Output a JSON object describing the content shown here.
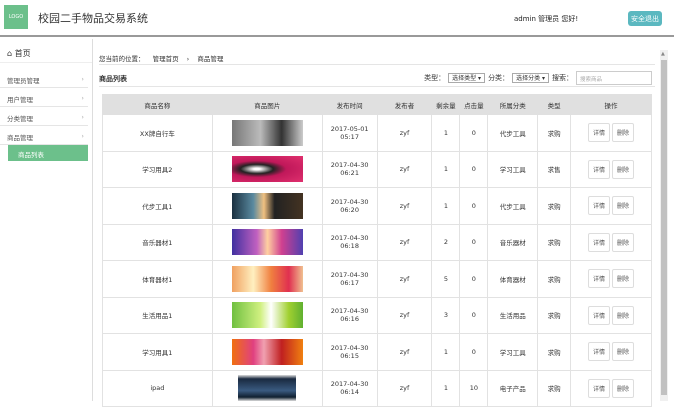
{
  "header": {
    "logo": "LOGO",
    "title": "校园二手物品交易系统",
    "user": "admin 管理员 您好!",
    "logout": "安全退出"
  },
  "sidebar": {
    "home": "首页",
    "items": [
      {
        "label": "管理员管理"
      },
      {
        "label": "用户管理"
      },
      {
        "label": "分类管理"
      },
      {
        "label": "商品管理"
      }
    ],
    "sub_active": "商品列表"
  },
  "breadcrumb": {
    "prefix": "您当前的位置：",
    "items": [
      "管理首页",
      "商品管理"
    ]
  },
  "toolbar": {
    "title": "商品列表",
    "type_label": "类型：",
    "type_select": "选择类型",
    "cat_label": "分类：",
    "cat_select": "选择分类",
    "search_label": "搜索：",
    "search_placeholder": "搜索商品"
  },
  "table": {
    "headers": [
      "商品名称",
      "商品图片",
      "发布时间",
      "发布者",
      "剩余量",
      "点击量",
      "所属分类",
      "类型",
      "操作"
    ],
    "detail": "详情",
    "delete": "删除",
    "rows": [
      {
        "name": "XX牌自行车",
        "date": "2017-05-01",
        "time": "05:17",
        "user": "zyf",
        "left": "1",
        "clicks": "0",
        "cat": "代步工具",
        "type": "求购",
        "img": "linear-gradient(90deg,#777,#bbb 40%,#333 70%,#ccc)"
      },
      {
        "name": "学习用具2",
        "date": "2017-04-30",
        "time": "06:21",
        "user": "zyf",
        "left": "1",
        "clicks": "0",
        "cat": "学习工具",
        "type": "求售",
        "img": "radial-gradient(ellipse at 35% 50%,#fff 5%,#222 25%,#c0185a 45%,#e0306e)"
      },
      {
        "name": "代步工具1",
        "date": "2017-04-30",
        "time": "06:20",
        "user": "zyf",
        "left": "1",
        "clicks": "0",
        "cat": "代步工具",
        "type": "求购",
        "img": "linear-gradient(90deg,#1a3040,#5a8aa0 30%,#f0c080 45%,#222 60%,#443322)"
      },
      {
        "name": "音乐器材1",
        "date": "2017-04-30",
        "time": "06:18",
        "user": "zyf",
        "left": "2",
        "clicks": "0",
        "cat": "音乐器材",
        "type": "求购",
        "img": "linear-gradient(90deg,#4030a0,#c060c0 35%,#ffd0a0 50%,#d04090 70%,#5040b0)"
      },
      {
        "name": "体育器材1",
        "date": "2017-04-30",
        "time": "06:17",
        "user": "zyf",
        "left": "5",
        "clicks": "0",
        "cat": "体育器材",
        "type": "求购",
        "img": "linear-gradient(90deg,#f0a060,#fff0c0 30%,#f08040 55%,#e03050 80%,#f0c090)"
      },
      {
        "name": "生活用品1",
        "date": "2017-04-30",
        "time": "06:16",
        "user": "zyf",
        "left": "3",
        "clicks": "0",
        "cat": "生活用品",
        "type": "求购",
        "img": "linear-gradient(90deg,#70c040,#d0f080 40%,#fff 55%,#a0d030 80%,#60b030)"
      },
      {
        "name": "学习用具1",
        "date": "2017-04-30",
        "time": "06:15",
        "user": "zyf",
        "left": "1",
        "clicks": "0",
        "cat": "学习工具",
        "type": "求购",
        "img": "linear-gradient(90deg,#f07010,#e04080 30%,#f0a0b0 45%,#c02020 70%,#f08010)"
      },
      {
        "name": "ipad",
        "date": "2017-04-30",
        "time": "06:14",
        "user": "zyf",
        "left": "1",
        "clicks": "10",
        "cat": "电子产品",
        "type": "求购",
        "img": "linear-gradient(180deg,#ddd,#1a2a40 15%,#3a5a80 60%,#102030 85%,#ddd)"
      }
    ]
  },
  "colors": {
    "accent": "#6cc08b",
    "logout": "#5bb8c0"
  }
}
